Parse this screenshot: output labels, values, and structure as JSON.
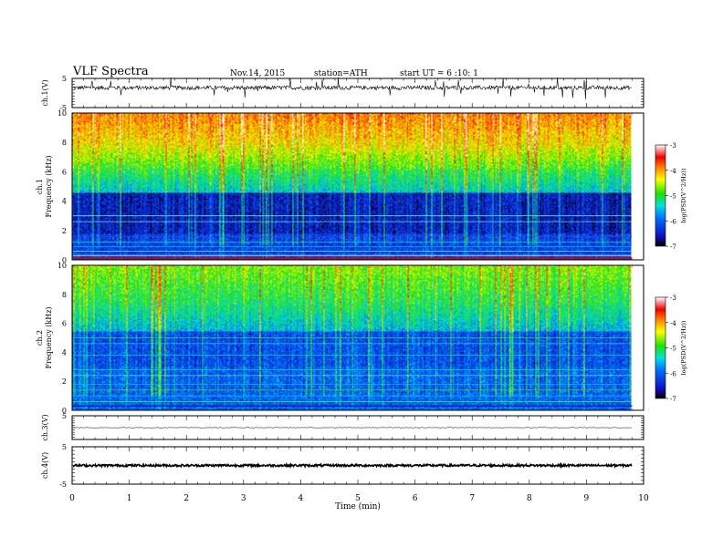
{
  "header": {
    "title": "VLF Spectra",
    "date": "Nov.14, 2015",
    "station": "station=ATH",
    "start": "start UT = 6 :10: 1"
  },
  "chart_data": [
    {
      "type": "line",
      "channel": "ch.1",
      "ylabel": "ch.1(V)",
      "ylim": [
        -5,
        5
      ],
      "yticks": [
        5,
        -5
      ],
      "description_level": "noisy trace around ~1.8 V with spikes",
      "baseline": 1.8
    },
    {
      "type": "heatmap",
      "channel": "ch.1",
      "ylabel_top": "ch.1",
      "ylabel": "Frequency (kHz)",
      "ylim": [
        0,
        10
      ],
      "yticks": [
        0,
        2,
        4,
        6,
        8,
        10
      ],
      "colorbar": {
        "label": "log(PSD(V^2/Hz))",
        "range": [
          -7,
          -3
        ],
        "ticks": [
          -3,
          -4,
          -5,
          -6,
          -7
        ]
      }
    },
    {
      "type": "heatmap",
      "channel": "ch.2",
      "ylabel_top": "ch.2",
      "ylabel": "Frequency (kHz)",
      "ylim": [
        0,
        10
      ],
      "yticks": [
        0,
        2,
        4,
        6,
        8,
        10
      ],
      "colorbar": {
        "label": "log(PSD(V^2/Hz))",
        "range": [
          -7,
          -3
        ],
        "ticks": [
          -3,
          -4,
          -5,
          -6,
          -7
        ]
      }
    },
    {
      "type": "line",
      "channel": "ch.3",
      "ylabel": "ch.3(V)",
      "ylim": [
        -5,
        5
      ],
      "yticks": [
        5
      ],
      "baseline": 0
    },
    {
      "type": "line",
      "channel": "ch.4",
      "ylabel": "ch.4(V)",
      "ylim": [
        -5,
        5
      ],
      "yticks": [
        5,
        -5
      ],
      "baseline": 0
    }
  ],
  "x_axis": {
    "label": "Time (min)",
    "xlim": [
      0,
      10
    ],
    "ticks": [
      0,
      1,
      2,
      3,
      4,
      5,
      6,
      7,
      8,
      9,
      10
    ],
    "data_end": 9.8
  }
}
